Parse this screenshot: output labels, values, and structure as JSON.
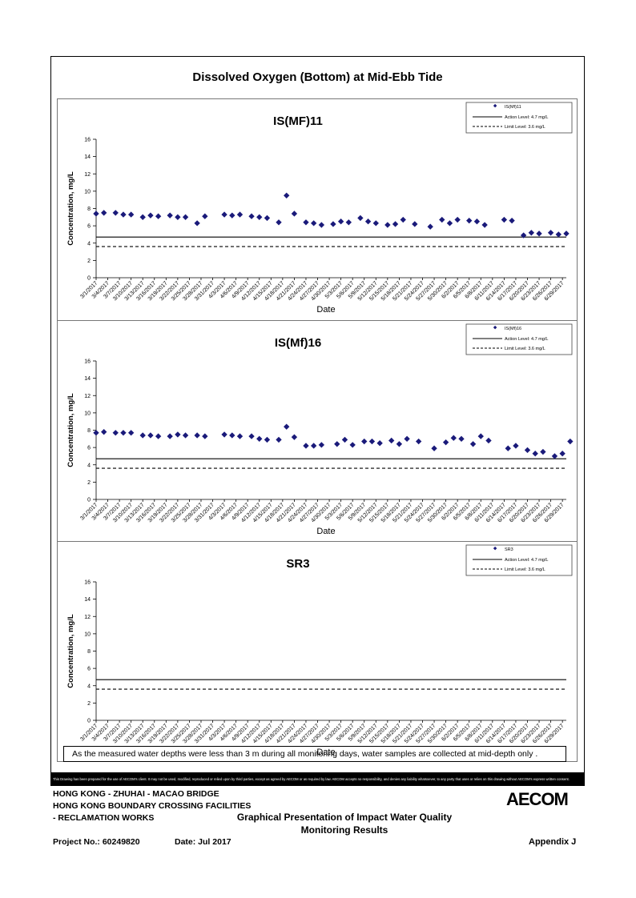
{
  "page_title": "Dissolved Oxygen (Bottom) at Mid-Ebb Tide",
  "note": "As the measured water depths were less than 3 m during all monitoring days, water samples are collected  at mid-depth only .",
  "disclaimer": "This Drawing has been prepared for the use of AECOM's client. It may not be used, modified, reproduced or relied upon by third parties, except as agreed by AECOM or as required by law. AECOM accepts no responsibility, and denies any liability whatsoever, to any party that uses or relies on this drawing without AECOM's express written consent.",
  "footer": {
    "line1": "HONG KONG - ZHUHAI - MACAO BRIDGE",
    "line2": "HONG KONG BOUNDARY CROSSING FACILITIES",
    "line3": "- RECLAMATION WORKS",
    "center_line1": "Graphical Presentation of Impact Water Quality",
    "center_line2": "Monitoring Results",
    "project": "Project No.: 60249820",
    "date": "Date: Jul 2017",
    "appendix": "Appendix J",
    "logo": "AECOM"
  },
  "colors": {
    "marker": "#1a1a7a",
    "line": "#000000"
  },
  "chart_data": [
    {
      "type": "scatter",
      "title": "IS(MF)11",
      "xlabel": "Date",
      "ylabel": "Concentration, mg/L",
      "ylim": [
        0,
        16
      ],
      "yticks": [
        0,
        2,
        4,
        6,
        8,
        10,
        12,
        14,
        16
      ],
      "xlim": [
        "3/1/2017",
        "6/30/2017"
      ],
      "xtick_labels": [
        "3/1/2017",
        "3/4/2017",
        "3/7/2017",
        "3/10/2017",
        "3/13/2017",
        "3/16/2017",
        "3/19/2017",
        "3/22/2017",
        "3/25/2017",
        "3/28/2017",
        "3/31/2017",
        "4/3/2017",
        "4/6/2017",
        "4/9/2017",
        "4/12/2017",
        "4/15/2017",
        "4/18/2017",
        "4/21/2017",
        "4/24/2017",
        "4/27/2017",
        "4/30/2017",
        "5/3/2017",
        "5/6/2017",
        "5/9/2017",
        "5/12/2017",
        "5/15/2017",
        "5/18/2017",
        "5/21/2017",
        "5/24/2017",
        "5/27/2017",
        "5/30/2017",
        "6/2/2017",
        "6/5/2017",
        "6/8/2017",
        "6/11/2017",
        "6/14/2017",
        "6/17/2017",
        "6/20/2017",
        "6/23/2017",
        "6/26/2017",
        "6/29/2017"
      ],
      "legend": {
        "position": "top-right",
        "entries": [
          "IS(Mf)11",
          "Action Level: 4.7 mg/L",
          "Limit Level: 3.6 mg/L"
        ]
      },
      "action_level": 4.7,
      "limit_level": 3.6,
      "series": [
        {
          "name": "IS(Mf)11",
          "points": [
            [
              "3/1/2017",
              7.4
            ],
            [
              "3/3/2017",
              7.5
            ],
            [
              "3/6/2017",
              7.5
            ],
            [
              "3/8/2017",
              7.3
            ],
            [
              "3/10/2017",
              7.3
            ],
            [
              "3/13/2017",
              7.0
            ],
            [
              "3/15/2017",
              7.2
            ],
            [
              "3/17/2017",
              7.1
            ],
            [
              "3/20/2017",
              7.2
            ],
            [
              "3/22/2017",
              7.0
            ],
            [
              "3/24/2017",
              7.0
            ],
            [
              "3/27/2017",
              6.3
            ],
            [
              "3/29/2017",
              7.1
            ],
            [
              "4/3/2017",
              7.3
            ],
            [
              "4/5/2017",
              7.2
            ],
            [
              "4/7/2017",
              7.3
            ],
            [
              "4/10/2017",
              7.1
            ],
            [
              "4/12/2017",
              7.0
            ],
            [
              "4/14/2017",
              6.9
            ],
            [
              "4/17/2017",
              6.4
            ],
            [
              "4/19/2017",
              9.5
            ],
            [
              "4/21/2017",
              7.4
            ],
            [
              "4/24/2017",
              6.4
            ],
            [
              "4/26/2017",
              6.3
            ],
            [
              "4/28/2017",
              6.1
            ],
            [
              "5/1/2017",
              6.2
            ],
            [
              "5/3/2017",
              6.5
            ],
            [
              "5/5/2017",
              6.4
            ],
            [
              "5/8/2017",
              6.9
            ],
            [
              "5/10/2017",
              6.5
            ],
            [
              "5/12/2017",
              6.3
            ],
            [
              "5/15/2017",
              6.1
            ],
            [
              "5/17/2017",
              6.2
            ],
            [
              "5/19/2017",
              6.7
            ],
            [
              "5/22/2017",
              6.2
            ],
            [
              "5/26/2017",
              5.9
            ],
            [
              "5/29/2017",
              6.7
            ],
            [
              "5/31/2017",
              6.3
            ],
            [
              "6/2/2017",
              6.7
            ],
            [
              "6/5/2017",
              6.6
            ],
            [
              "6/7/2017",
              6.5
            ],
            [
              "6/9/2017",
              6.1
            ],
            [
              "6/14/2017",
              6.7
            ],
            [
              "6/16/2017",
              6.6
            ],
            [
              "6/19/2017",
              4.9
            ],
            [
              "6/21/2017",
              5.2
            ],
            [
              "6/23/2017",
              5.1
            ],
            [
              "6/26/2017",
              5.2
            ],
            [
              "6/28/2017",
              5.0
            ],
            [
              "6/30/2017",
              5.1
            ]
          ]
        }
      ]
    },
    {
      "type": "scatter",
      "title": "IS(Mf)16",
      "xlabel": "Date",
      "ylabel": "Concentration, mg/L",
      "ylim": [
        0,
        16
      ],
      "yticks": [
        0,
        2,
        4,
        6,
        8,
        10,
        12,
        14,
        16
      ],
      "xlim": [
        "3/1/2017",
        "6/30/2017"
      ],
      "xtick_labels": [
        "3/1/2017",
        "3/4/2017",
        "3/7/2017",
        "3/10/2017",
        "3/13/2017",
        "3/16/2017",
        "3/19/2017",
        "3/22/2017",
        "3/25/2017",
        "3/28/2017",
        "3/31/2017",
        "4/3/2017",
        "4/6/2017",
        "4/9/2017",
        "4/12/2017",
        "4/15/2017",
        "4/18/2017",
        "4/21/2017",
        "4/24/2017",
        "4/27/2017",
        "4/30/2017",
        "5/3/2017",
        "5/6/2017",
        "5/9/2017",
        "5/12/2017",
        "5/15/2017",
        "5/18/2017",
        "5/21/2017",
        "5/24/2017",
        "5/27/2017",
        "5/30/2017",
        "6/2/2017",
        "6/5/2017",
        "6/8/2017",
        "6/11/2017",
        "6/14/2017",
        "6/17/2017",
        "6/20/2017",
        "6/23/2017",
        "6/26/2017",
        "6/29/2017"
      ],
      "legend": {
        "position": "top-right",
        "entries": [
          "IS(Mf)16",
          "Action Level: 4.7 mg/L",
          "Limit Level: 3.6 mg/L"
        ]
      },
      "action_level": 4.7,
      "limit_level": 3.6,
      "series": [
        {
          "name": "IS(Mf)16",
          "points": [
            [
              "3/1/2017",
              7.7
            ],
            [
              "3/3/2017",
              7.8
            ],
            [
              "3/6/2017",
              7.7
            ],
            [
              "3/8/2017",
              7.7
            ],
            [
              "3/10/2017",
              7.7
            ],
            [
              "3/13/2017",
              7.4
            ],
            [
              "3/15/2017",
              7.4
            ],
            [
              "3/17/2017",
              7.3
            ],
            [
              "3/20/2017",
              7.3
            ],
            [
              "3/22/2017",
              7.5
            ],
            [
              "3/24/2017",
              7.4
            ],
            [
              "3/27/2017",
              7.4
            ],
            [
              "3/29/2017",
              7.3
            ],
            [
              "4/3/2017",
              7.5
            ],
            [
              "4/5/2017",
              7.4
            ],
            [
              "4/7/2017",
              7.3
            ],
            [
              "4/10/2017",
              7.3
            ],
            [
              "4/12/2017",
              7.0
            ],
            [
              "4/14/2017",
              6.9
            ],
            [
              "4/17/2017",
              6.9
            ],
            [
              "4/19/2017",
              8.4
            ],
            [
              "4/21/2017",
              7.2
            ],
            [
              "4/24/2017",
              6.2
            ],
            [
              "4/26/2017",
              6.2
            ],
            [
              "4/28/2017",
              6.3
            ],
            [
              "5/2/2017",
              6.4
            ],
            [
              "5/4/2017",
              6.9
            ],
            [
              "5/6/2017",
              6.3
            ],
            [
              "5/9/2017",
              6.7
            ],
            [
              "5/11/2017",
              6.7
            ],
            [
              "5/13/2017",
              6.5
            ],
            [
              "5/16/2017",
              6.8
            ],
            [
              "5/18/2017",
              6.4
            ],
            [
              "5/20/2017",
              7.0
            ],
            [
              "5/23/2017",
              6.7
            ],
            [
              "5/27/2017",
              5.9
            ],
            [
              "5/30/2017",
              6.6
            ],
            [
              "6/1/2017",
              7.1
            ],
            [
              "6/3/2017",
              7.0
            ],
            [
              "6/6/2017",
              6.4
            ],
            [
              "6/8/2017",
              7.3
            ],
            [
              "6/10/2017",
              6.8
            ],
            [
              "6/15/2017",
              5.9
            ],
            [
              "6/17/2017",
              6.2
            ],
            [
              "6/20/2017",
              5.7
            ],
            [
              "6/22/2017",
              5.3
            ],
            [
              "6/24/2017",
              5.5
            ],
            [
              "6/27/2017",
              5.0
            ],
            [
              "6/29/2017",
              5.3
            ],
            [
              "7/1/2017",
              6.7
            ]
          ]
        }
      ]
    },
    {
      "type": "scatter",
      "title": "SR3",
      "xlabel": "Date",
      "ylabel": "Concentration, mg/L",
      "ylim": [
        0,
        16
      ],
      "yticks": [
        0,
        2,
        4,
        6,
        8,
        10,
        12,
        14,
        16
      ],
      "xlim": [
        "3/1/2017",
        "6/30/2017"
      ],
      "xtick_labels": [
        "3/1/2017",
        "3/4/2017",
        "3/7/2017",
        "3/10/2017",
        "3/13/2017",
        "3/16/2017",
        "3/19/2017",
        "3/22/2017",
        "3/25/2017",
        "3/28/2017",
        "3/31/2017",
        "4/3/2017",
        "4/6/2017",
        "4/9/2017",
        "4/12/2017",
        "4/15/2017",
        "4/18/2017",
        "4/21/2017",
        "4/24/2017",
        "4/27/2017",
        "4/30/2017",
        "5/3/2017",
        "5/6/2017",
        "5/9/2017",
        "5/12/2017",
        "5/15/2017",
        "5/18/2017",
        "5/21/2017",
        "5/24/2017",
        "5/27/2017",
        "5/30/2017",
        "6/2/2017",
        "6/5/2017",
        "6/8/2017",
        "6/11/2017",
        "6/14/2017",
        "6/17/2017",
        "6/20/2017",
        "6/23/2017",
        "6/26/2017",
        "6/29/2017"
      ],
      "legend": {
        "position": "top-right",
        "entries": [
          "SR3",
          "Action Level: 4.7 mg/L",
          "Limit Level: 3.6 mg/L"
        ]
      },
      "action_level": 4.7,
      "limit_level": 3.6,
      "series": [
        {
          "name": "SR3",
          "points": []
        }
      ]
    }
  ]
}
